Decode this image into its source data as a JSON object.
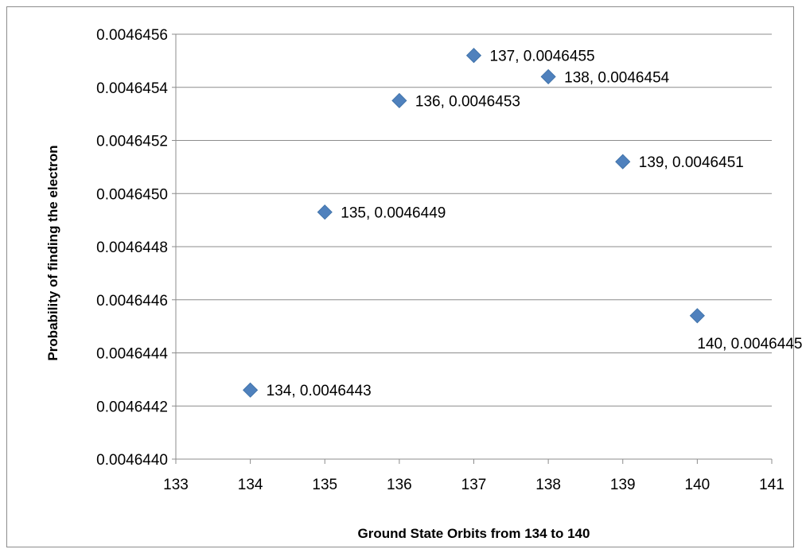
{
  "chart_data": {
    "type": "scatter",
    "title": "",
    "xlabel": "Ground State Orbits from 134 to 140",
    "ylabel": "Probability of  finding the electron",
    "xlim": [
      133,
      141
    ],
    "ylim": [
      0.004644,
      0.0046456
    ],
    "x_ticks": [
      "133",
      "134",
      "135",
      "136",
      "137",
      "138",
      "139",
      "140",
      "141"
    ],
    "y_ticks": [
      "0.0046440",
      "0.0046442",
      "0.0046444",
      "0.0046446",
      "0.0046448",
      "0.0046450",
      "0.0046452",
      "0.0046454",
      "0.0046456"
    ],
    "grid": "horizontal",
    "legend": "none",
    "marker": "diamond",
    "marker_color": "#4f81bd",
    "series": [
      {
        "points": [
          {
            "x": 134,
            "y": 0.00464426,
            "label": "134, 0.0046443"
          },
          {
            "x": 135,
            "y": 0.00464493,
            "label": "135, 0.0046449"
          },
          {
            "x": 136,
            "y": 0.00464535,
            "label": "136, 0.0046453"
          },
          {
            "x": 137,
            "y": 0.00464552,
            "label": "137, 0.0046455"
          },
          {
            "x": 138,
            "y": 0.00464544,
            "label": "138, 0.0046454"
          },
          {
            "x": 139,
            "y": 0.00464512,
            "label": "139, 0.0046451"
          },
          {
            "x": 140,
            "y": 0.00464454,
            "label": "140, 0.0046445"
          }
        ]
      }
    ]
  }
}
